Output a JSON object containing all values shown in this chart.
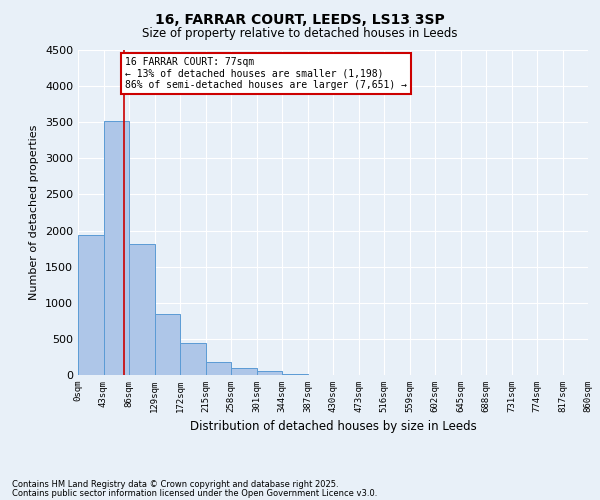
{
  "title_line1": "16, FARRAR COURT, LEEDS, LS13 3SP",
  "title_line2": "Size of property relative to detached houses in Leeds",
  "xlabel": "Distribution of detached houses by size in Leeds",
  "ylabel": "Number of detached properties",
  "bin_labels": [
    "0sqm",
    "43sqm",
    "86sqm",
    "129sqm",
    "172sqm",
    "215sqm",
    "258sqm",
    "301sqm",
    "344sqm",
    "387sqm",
    "430sqm",
    "473sqm",
    "516sqm",
    "559sqm",
    "602sqm",
    "645sqm",
    "688sqm",
    "731sqm",
    "774sqm",
    "817sqm",
    "860sqm"
  ],
  "bar_heights": [
    1940,
    3520,
    1820,
    850,
    450,
    175,
    100,
    60,
    20,
    0,
    0,
    0,
    0,
    0,
    0,
    0,
    0,
    0,
    0,
    0
  ],
  "bar_color": "#aec6e8",
  "bar_edge_color": "#5b9bd5",
  "background_color": "#e8f0f8",
  "grid_color": "#ffffff",
  "ylim": [
    0,
    4500
  ],
  "yticks": [
    0,
    500,
    1000,
    1500,
    2000,
    2500,
    3000,
    3500,
    4000,
    4500
  ],
  "property_size_sqm": 77,
  "marker_color": "#cc0000",
  "annotation_text": "16 FARRAR COURT: 77sqm\n← 13% of detached houses are smaller (1,198)\n86% of semi-detached houses are larger (7,651) →",
  "annotation_box_color": "#ffffff",
  "annotation_box_edge": "#cc0000",
  "footnote_line1": "Contains HM Land Registry data © Crown copyright and database right 2025.",
  "footnote_line2": "Contains public sector information licensed under the Open Government Licence v3.0."
}
